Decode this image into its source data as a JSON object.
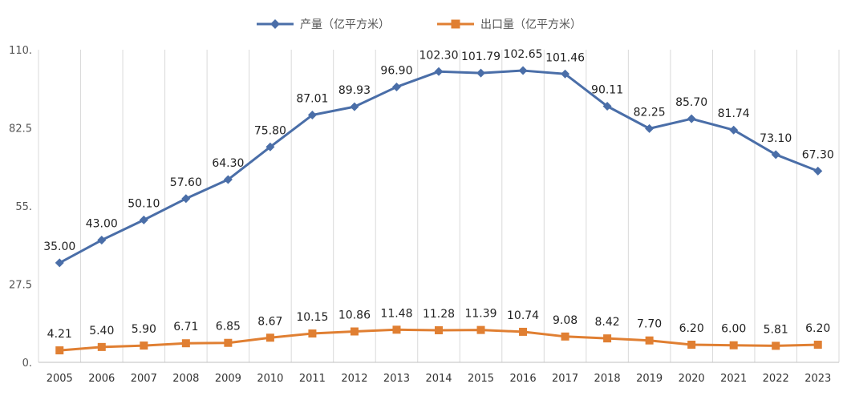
{
  "chart_data": {
    "type": "line",
    "title": "",
    "xlabel": "",
    "ylabel": "",
    "ylim": [
      0,
      110
    ],
    "y_ticks": [
      "0.",
      "27.5",
      "55.",
      "82.5",
      "110."
    ],
    "y_tick_values": [
      0,
      27.5,
      55,
      82.5,
      110
    ],
    "grid": "vertical",
    "legend_position": "top-center",
    "categories": [
      "2005",
      "2006",
      "2007",
      "2008",
      "2009",
      "2010",
      "2011",
      "2012",
      "2013",
      "2014",
      "2015",
      "2016",
      "2017",
      "2018",
      "2019",
      "2020",
      "2021",
      "2022",
      "2023"
    ],
    "series": [
      {
        "name": "产量（亿平方米）",
        "color": "#4a6ea8",
        "marker": "diamond",
        "values": [
          35.0,
          43.0,
          50.1,
          57.6,
          64.3,
          75.8,
          87.01,
          89.93,
          96.9,
          102.3,
          101.79,
          102.65,
          101.46,
          90.11,
          82.25,
          85.7,
          81.74,
          73.1,
          67.3
        ],
        "labels": [
          "35.00",
          "43.00",
          "50.10",
          "57.60",
          "64.30",
          "75.80",
          "87.01",
          "89.93",
          "96.90",
          "102.30",
          "101.79",
          "102.65",
          "101.46",
          "90.11",
          "82.25",
          "85.70",
          "81.74",
          "73.10",
          "67.30"
        ]
      },
      {
        "name": "出口量（亿平方米）",
        "color": "#e07f32",
        "marker": "square",
        "values": [
          4.21,
          5.4,
          5.9,
          6.71,
          6.85,
          8.67,
          10.15,
          10.86,
          11.48,
          11.28,
          11.39,
          10.74,
          9.08,
          8.42,
          7.7,
          6.2,
          6.0,
          5.81,
          6.2
        ],
        "labels": [
          "4.21",
          "5.40",
          "5.90",
          "6.71",
          "6.85",
          "8.67",
          "10.15",
          "10.86",
          "11.48",
          "11.28",
          "11.39",
          "10.74",
          "9.08",
          "8.42",
          "7.70",
          "6.20",
          "6.00",
          "5.81",
          "6.20"
        ]
      }
    ]
  }
}
